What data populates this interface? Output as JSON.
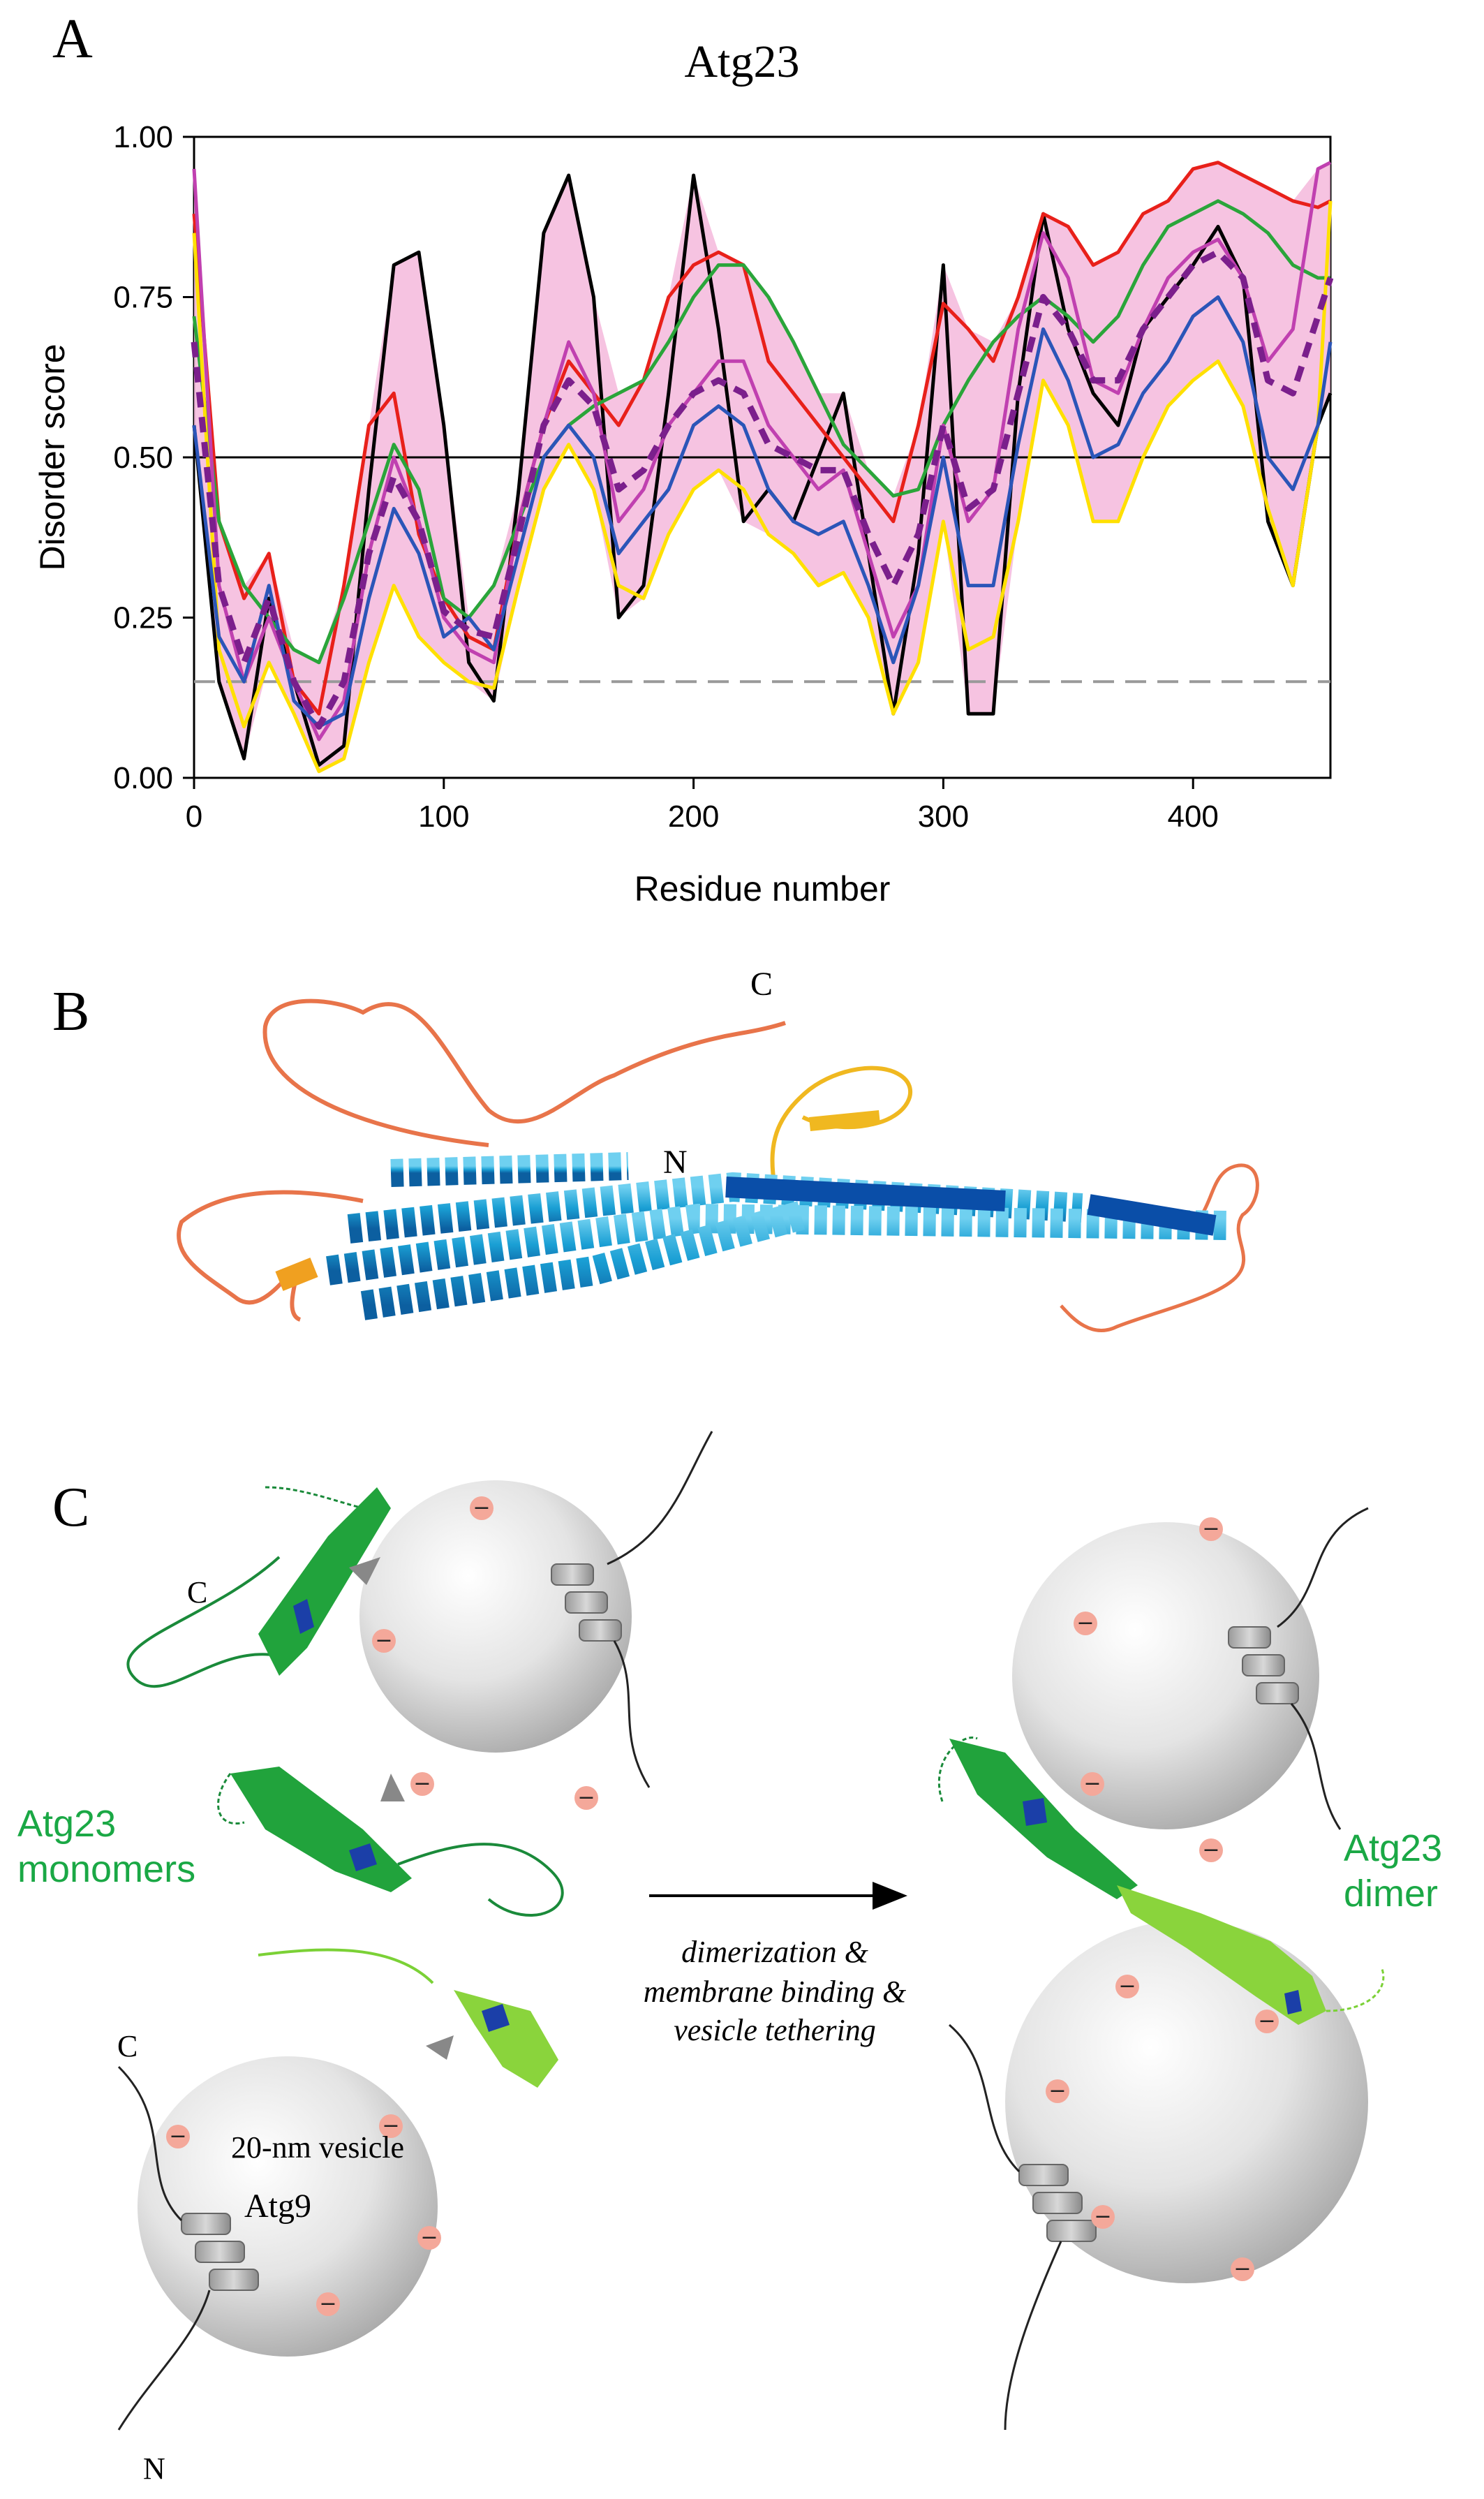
{
  "panels": {
    "a": "A",
    "b": "B",
    "c": "C"
  },
  "chart_data": {
    "type": "line",
    "title": "Atg23",
    "xlabel": "Residue number",
    "ylabel": "Disorder score",
    "xlim": [
      0,
      455
    ],
    "ylim": [
      0,
      1
    ],
    "x_ticks": [
      0,
      100,
      200,
      300,
      400
    ],
    "x_tick_labels": [
      "0",
      "100",
      "200",
      "300",
      "400"
    ],
    "y_ticks": [
      0,
      0.25,
      0.5,
      0.75,
      1
    ],
    "y_tick_labels": [
      "0.00",
      "0.25",
      "0.50",
      "0.75",
      "1.00"
    ],
    "threshold_solid": 0.5,
    "threshold_dashed": 0.15,
    "x": [
      0,
      10,
      20,
      30,
      40,
      50,
      60,
      70,
      80,
      90,
      100,
      110,
      120,
      130,
      140,
      150,
      160,
      170,
      180,
      190,
      200,
      210,
      220,
      230,
      240,
      250,
      260,
      270,
      280,
      290,
      300,
      310,
      320,
      330,
      340,
      350,
      360,
      370,
      380,
      390,
      400,
      410,
      420,
      430,
      440,
      450,
      455
    ],
    "series": [
      {
        "name": "black",
        "color": "#000000",
        "values": [
          0.55,
          0.15,
          0.03,
          0.28,
          0.15,
          0.02,
          0.05,
          0.45,
          0.8,
          0.82,
          0.55,
          0.18,
          0.12,
          0.45,
          0.85,
          0.94,
          0.75,
          0.25,
          0.3,
          0.6,
          0.94,
          0.7,
          0.4,
          0.45,
          0.4,
          0.5,
          0.6,
          0.35,
          0.1,
          0.35,
          0.8,
          0.1,
          0.1,
          0.6,
          0.88,
          0.7,
          0.6,
          0.55,
          0.7,
          0.75,
          0.8,
          0.86,
          0.78,
          0.4,
          0.3,
          0.55,
          0.6
        ]
      },
      {
        "name": "red",
        "color": "#e8201a",
        "values": [
          0.88,
          0.4,
          0.28,
          0.35,
          0.15,
          0.1,
          0.3,
          0.55,
          0.6,
          0.38,
          0.28,
          0.22,
          0.2,
          0.4,
          0.55,
          0.65,
          0.6,
          0.55,
          0.62,
          0.75,
          0.8,
          0.82,
          0.8,
          0.65,
          0.6,
          0.55,
          0.5,
          0.45,
          0.4,
          0.55,
          0.74,
          0.7,
          0.65,
          0.75,
          0.88,
          0.86,
          0.8,
          0.82,
          0.88,
          0.9,
          0.95,
          0.96,
          0.94,
          0.92,
          0.9,
          0.89,
          0.9
        ]
      },
      {
        "name": "green",
        "color": "#2aa53a",
        "values": [
          0.72,
          0.4,
          0.3,
          0.25,
          0.2,
          0.18,
          0.28,
          0.4,
          0.52,
          0.45,
          0.28,
          0.25,
          0.3,
          0.4,
          0.5,
          0.55,
          0.58,
          0.6,
          0.62,
          0.68,
          0.75,
          0.8,
          0.8,
          0.75,
          0.68,
          0.6,
          0.52,
          0.48,
          0.44,
          0.45,
          0.55,
          0.62,
          0.68,
          0.72,
          0.75,
          0.72,
          0.68,
          0.72,
          0.8,
          0.86,
          0.88,
          0.9,
          0.88,
          0.85,
          0.8,
          0.78,
          0.78
        ]
      },
      {
        "name": "magenta",
        "color": "#c040b0",
        "values": [
          0.95,
          0.3,
          0.15,
          0.25,
          0.15,
          0.06,
          0.12,
          0.35,
          0.5,
          0.4,
          0.25,
          0.2,
          0.18,
          0.4,
          0.55,
          0.68,
          0.6,
          0.4,
          0.45,
          0.55,
          0.6,
          0.65,
          0.65,
          0.55,
          0.5,
          0.45,
          0.48,
          0.35,
          0.22,
          0.3,
          0.55,
          0.4,
          0.45,
          0.7,
          0.85,
          0.78,
          0.62,
          0.6,
          0.7,
          0.78,
          0.82,
          0.84,
          0.78,
          0.65,
          0.7,
          0.95,
          0.96
        ]
      },
      {
        "name": "yellow",
        "color": "#ffe000",
        "values": [
          0.85,
          0.2,
          0.08,
          0.18,
          0.1,
          0.01,
          0.03,
          0.18,
          0.3,
          0.22,
          0.18,
          0.15,
          0.14,
          0.3,
          0.45,
          0.52,
          0.45,
          0.3,
          0.28,
          0.38,
          0.45,
          0.48,
          0.45,
          0.38,
          0.35,
          0.3,
          0.32,
          0.25,
          0.1,
          0.18,
          0.4,
          0.2,
          0.22,
          0.4,
          0.62,
          0.55,
          0.4,
          0.4,
          0.5,
          0.58,
          0.62,
          0.65,
          0.58,
          0.42,
          0.3,
          0.55,
          0.9
        ]
      },
      {
        "name": "blue",
        "color": "#2b55b8",
        "values": [
          0.55,
          0.22,
          0.15,
          0.3,
          0.12,
          0.08,
          0.1,
          0.28,
          0.42,
          0.35,
          0.22,
          0.25,
          0.2,
          0.35,
          0.5,
          0.55,
          0.5,
          0.35,
          0.4,
          0.45,
          0.55,
          0.58,
          0.55,
          0.45,
          0.4,
          0.38,
          0.4,
          0.3,
          0.18,
          0.3,
          0.5,
          0.3,
          0.3,
          0.52,
          0.7,
          0.62,
          0.5,
          0.52,
          0.6,
          0.65,
          0.72,
          0.75,
          0.68,
          0.5,
          0.45,
          0.55,
          0.68
        ]
      },
      {
        "name": "mean",
        "color": "#7b1f8c",
        "style": "dashed",
        "values": [
          0.68,
          0.3,
          0.18,
          0.28,
          0.15,
          0.08,
          0.15,
          0.35,
          0.47,
          0.4,
          0.26,
          0.23,
          0.22,
          0.38,
          0.55,
          0.62,
          0.58,
          0.45,
          0.48,
          0.55,
          0.6,
          0.62,
          0.6,
          0.52,
          0.5,
          0.48,
          0.48,
          0.38,
          0.3,
          0.38,
          0.55,
          0.42,
          0.45,
          0.6,
          0.75,
          0.7,
          0.62,
          0.62,
          0.7,
          0.75,
          0.8,
          0.82,
          0.78,
          0.62,
          0.6,
          0.72,
          0.78
        ]
      }
    ]
  },
  "panel_b": {
    "label_c": "C",
    "label_n": "N"
  },
  "panel_c": {
    "label_c_top": "C",
    "label_c_bottom": "C",
    "label_n_bottom": "N",
    "monomers_line1": "Atg23",
    "monomers_line2": "monomers",
    "dimer_line1": "Atg23",
    "dimer_line2": "dimer",
    "process_line1": "dimerization &",
    "process_line2": "membrane binding &",
    "process_line3": "vesicle tethering",
    "vesicle_label": "20-nm vesicle",
    "atg9_label": "Atg9",
    "minus_sign": "−"
  },
  "colors": {
    "envelope": "#f5b8dc",
    "accent_green": "#1aa845"
  }
}
